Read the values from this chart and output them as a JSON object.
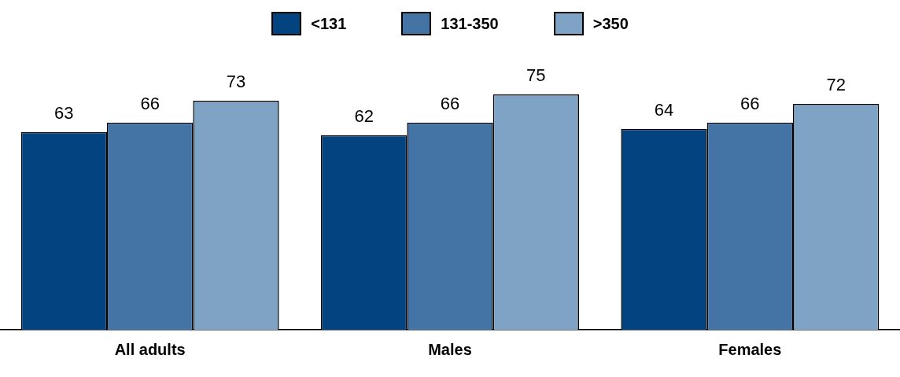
{
  "chart_data": {
    "type": "bar",
    "categories": [
      "All adults",
      "Males",
      "Females"
    ],
    "series": [
      {
        "name": "<131",
        "color": "#03437f",
        "values": [
          63,
          62,
          64
        ]
      },
      {
        "name": "131-350",
        "color": "#4374a5",
        "values": [
          66,
          66,
          66
        ]
      },
      {
        "name": ">350",
        "color": "#7fa3c4",
        "values": [
          73,
          75,
          72
        ]
      }
    ],
    "data_labels": true,
    "legend": "top",
    "grid": false
  }
}
